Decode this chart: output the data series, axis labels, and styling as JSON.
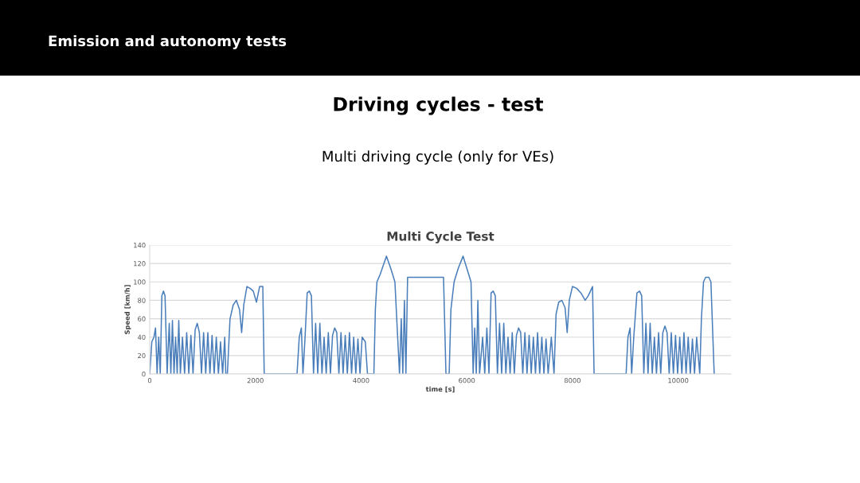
{
  "chart_data": {
    "type": "line",
    "title": "Multi Cycle Test",
    "xlabel": "time [s]",
    "ylabel": "Speed [km/h]",
    "annotations": [
      "Emission and autonomy tests",
      "Driving cycles - test",
      "Multi driving cycle (only for VEs)"
    ],
    "xlim": [
      0,
      11000
    ],
    "xticks": [
      0,
      2000,
      4000,
      6000,
      8000,
      10000
    ],
    "ylim": [
      0,
      140
    ],
    "yticks": [
      0,
      20,
      40,
      60,
      80,
      100,
      120,
      140
    ],
    "grid": "y",
    "legend": false,
    "marker": "none",
    "line_style": "solid",
    "series": [
      {
        "color": "#4a7ebb",
        "x": [
          0,
          40,
          80,
          110,
          140,
          170,
          200,
          230,
          260,
          290,
          330,
          370,
          400,
          430,
          460,
          490,
          520,
          550,
          580,
          620,
          660,
          700,
          740,
          780,
          820,
          860,
          900,
          940,
          980,
          1020,
          1060,
          1100,
          1140,
          1180,
          1220,
          1260,
          1300,
          1340,
          1380,
          1420,
          1440,
          1470,
          1520,
          1580,
          1640,
          1700,
          1740,
          1780,
          1840,
          1900,
          1960,
          2020,
          2080,
          2140,
          2167,
          2788,
          2830,
          2870,
          2900,
          2940,
          2980,
          3020,
          3060,
          3100,
          3140,
          3180,
          3220,
          3260,
          3300,
          3340,
          3380,
          3420,
          3460,
          3500,
          3540,
          3580,
          3620,
          3660,
          3700,
          3740,
          3780,
          3820,
          3860,
          3900,
          3940,
          3980,
          4020,
          4080,
          4121,
          4242,
          4270,
          4300,
          4360,
          4420,
          4480,
          4560,
          4640,
          4727,
          4760,
          4790,
          4820,
          4848,
          4880,
          5200,
          5560,
          5606,
          5667,
          5700,
          5760,
          5840,
          5930,
          6000,
          6080,
          6121,
          6150,
          6180,
          6210,
          6242,
          6300,
          6340,
          6380,
          6420,
          6460,
          6500,
          6540,
          6580,
          6620,
          6660,
          6700,
          6740,
          6780,
          6820,
          6860,
          6900,
          6940,
          6980,
          7020,
          7060,
          7100,
          7140,
          7180,
          7220,
          7260,
          7300,
          7340,
          7380,
          7420,
          7460,
          7500,
          7540,
          7600,
          7651,
          7690,
          7740,
          7800,
          7860,
          7900,
          7940,
          8000,
          8080,
          8160,
          8240,
          8300,
          8380,
          8409,
          9015,
          9050,
          9090,
          9120,
          9160,
          9220,
          9270,
          9310,
          9350,
          9390,
          9430,
          9470,
          9510,
          9550,
          9590,
          9630,
          9670,
          9710,
          9750,
          9790,
          9830,
          9870,
          9910,
          9950,
          9990,
          10030,
          10070,
          10110,
          10150,
          10190,
          10230,
          10270,
          10310,
          10350,
          10409,
          10440,
          10480,
          10520,
          10580,
          10620,
          10682
        ],
        "values": [
          0,
          35,
          40,
          50,
          0,
          40,
          0,
          85,
          90,
          85,
          0,
          55,
          0,
          58,
          0,
          40,
          0,
          58,
          0,
          40,
          0,
          45,
          0,
          42,
          0,
          48,
          55,
          45,
          0,
          45,
          0,
          45,
          0,
          42,
          0,
          40,
          0,
          35,
          0,
          40,
          0,
          0,
          60,
          75,
          80,
          70,
          45,
          75,
          95,
          93,
          90,
          78,
          95,
          95,
          0,
          0,
          40,
          50,
          0,
          40,
          88,
          90,
          85,
          0,
          55,
          0,
          55,
          0,
          40,
          0,
          45,
          0,
          42,
          50,
          45,
          0,
          45,
          0,
          42,
          0,
          45,
          0,
          40,
          0,
          38,
          0,
          40,
          35,
          0,
          0,
          70,
          100,
          108,
          118,
          128,
          115,
          100,
          0,
          60,
          0,
          80,
          0,
          105,
          105,
          105,
          0,
          0,
          70,
          100,
          115,
          128,
          115,
          100,
          0,
          50,
          0,
          80,
          0,
          40,
          0,
          50,
          0,
          88,
          90,
          85,
          0,
          55,
          0,
          55,
          0,
          40,
          0,
          45,
          0,
          42,
          50,
          45,
          0,
          45,
          0,
          42,
          0,
          40,
          0,
          45,
          0,
          40,
          0,
          38,
          0,
          40,
          0,
          65,
          78,
          80,
          72,
          45,
          80,
          95,
          93,
          88,
          80,
          85,
          95,
          0,
          0,
          40,
          50,
          0,
          40,
          88,
          90,
          85,
          0,
          55,
          0,
          55,
          0,
          40,
          0,
          45,
          0,
          45,
          52,
          45,
          0,
          45,
          0,
          42,
          0,
          40,
          0,
          45,
          0,
          40,
          0,
          38,
          0,
          40,
          0,
          60,
          100,
          105,
          105,
          100,
          0
        ]
      }
    ]
  }
}
